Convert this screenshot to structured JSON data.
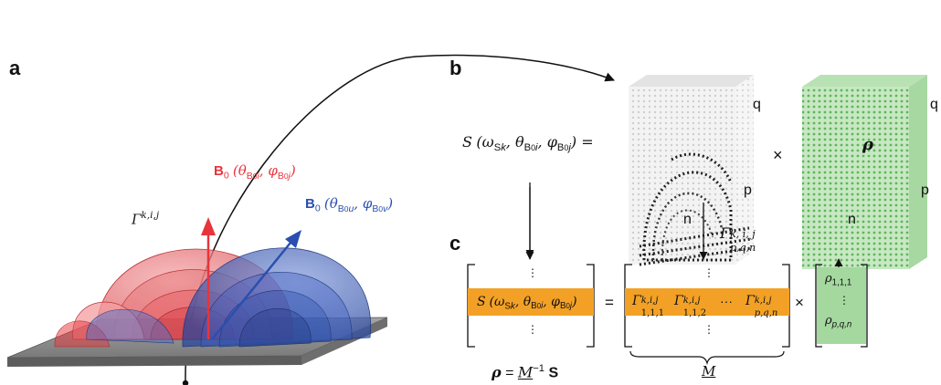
{
  "panels": {
    "a": "a",
    "b": "b",
    "c": "c"
  },
  "colors": {
    "red_field": "#e8343b",
    "blue_field": "#2a4fb0",
    "orange_row": "#f3a126",
    "green_rho": "#9fd49a",
    "plate": "#8c8c8c"
  },
  "panel_a": {
    "gamma_label": "Γ",
    "gamma_sup": "k,i,j",
    "red_vector": {
      "B": "B",
      "zero": "0",
      "args": "(θ",
      "sub1": "B",
      "sub1b": "0",
      "sub1c": "i",
      "comma": ", φ",
      "sub2": "B",
      "sub2b": "0",
      "sub2c": "j",
      "close": ")"
    },
    "blue_vector": {
      "B": "B",
      "zero": "0",
      "args": "(θ",
      "sub1": "B",
      "sub1b": "0",
      "sub1c": "u",
      "comma": ", φ",
      "sub2": "B",
      "sub2b": "0",
      "sub2c": "v",
      "close": ")"
    }
  },
  "panel_b": {
    "lhs_S": "S",
    "lhs_open": "(ω",
    "lhs_sub_S": "S",
    "lhs_sub_k": "k",
    "lhs_theta": ", θ",
    "lhs_sub_B0i": "B",
    "lhs_sub_0i": "0",
    "lhs_sub_i": "i",
    "lhs_phi": ", φ",
    "lhs_sub_B0j": "B",
    "lhs_sub_0j": "0",
    "lhs_sub_j": "j",
    "lhs_close": ") =",
    "cube1_q": "q",
    "cube1_p": "p",
    "cube1_n": "n",
    "times": "×",
    "rho": "ρ",
    "cube2_q": "q",
    "cube2_p": "p",
    "cube2_n": "n",
    "gamma_arrow_label": "Γ",
    "gamma_arrow_sup": "k, i, j",
    "gamma_arrow_sub": "p,q,n"
  },
  "panel_c": {
    "vdots": "⋮",
    "row_S": "S",
    "row_args": "(ω",
    "row_sub_S": "S",
    "row_sub_k": "k",
    "row_theta": ", θ",
    "row_sub_B0i": "B",
    "row_sub_0i": "0",
    "row_sub_i": "i",
    "row_phi": ", φ",
    "row_sub_B0j": "B",
    "row_sub_0j": "0",
    "row_sub_j": "j",
    "row_close": ")",
    "equals": "=",
    "m_entry1_sup": "k,i,j",
    "m_entry1_sub": "1,1,1",
    "m_entry2_sup": "k,i,j",
    "m_entry2_sub": "1,1,2",
    "m_dots": "···",
    "m_entry3_sup": "k,i,j",
    "m_entry3_sub": "p,q,n",
    "gamma": "Γ",
    "times": "×",
    "rho_top": "ρ",
    "rho_top_sub": "1,1,1",
    "rho_bottom": "ρ",
    "rho_bottom_sub": "p,q,n",
    "brace_label": "M",
    "formula_rho": "ρ",
    "formula_eq": " = ",
    "formula_M": "M",
    "formula_inv": "−1",
    "formula_S": " S"
  }
}
